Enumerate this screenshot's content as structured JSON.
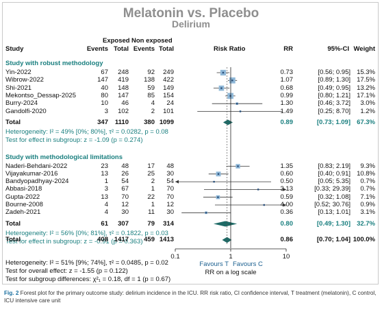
{
  "title": "Melatonin vs. Placebo",
  "subtitle": "Delirium",
  "headers": {
    "exposed": "Exposed",
    "nonexposed": "Non exposed",
    "study": "Study",
    "events1": "Events",
    "total1": "Total",
    "events2": "Events",
    "total2": "Total",
    "rr_header": "Risk Ratio",
    "rr": "RR",
    "ci": "95%-CI",
    "weight": "Weight"
  },
  "chart_data": {
    "type": "forest",
    "x_scale": "log",
    "xlim": [
      0.1,
      10
    ],
    "ticks": [
      "0.1",
      "1",
      "10"
    ],
    "xlabel": "RR on a log scale",
    "favours_left": "Favours T",
    "favours_right": "Favours C",
    "groups": [
      {
        "name": "Study with robust methodology",
        "studies": [
          {
            "study": "Yin-2022",
            "e1": "67",
            "n1": "248",
            "e2": "92",
            "n2": "249",
            "rr": 0.73,
            "lo": 0.56,
            "hi": 0.95,
            "rr_text": "0.73",
            "ci_text": "[0.56; 0.95]",
            "weight": "15.3%"
          },
          {
            "study": "Wibrow-2022",
            "e1": "147",
            "n1": "419",
            "e2": "138",
            "n2": "422",
            "rr": 1.07,
            "lo": 0.89,
            "hi": 1.3,
            "rr_text": "1.07",
            "ci_text": "[0.89; 1.30]",
            "weight": "17.5%"
          },
          {
            "study": "Shi-2021",
            "e1": "40",
            "n1": "148",
            "e2": "59",
            "n2": "149",
            "rr": 0.68,
            "lo": 0.49,
            "hi": 0.95,
            "rr_text": "0.68",
            "ci_text": "[0.49; 0.95]",
            "weight": "13.2%"
          },
          {
            "study": "Mekontso_Dessap-2025",
            "e1": "80",
            "n1": "147",
            "e2": "85",
            "n2": "154",
            "rr": 0.99,
            "lo": 0.8,
            "hi": 1.21,
            "rr_text": "0.99",
            "ci_text": "[0.80; 1.21]",
            "weight": "17.1%"
          },
          {
            "study": "Burry-2024",
            "e1": "10",
            "n1": "46",
            "e2": "4",
            "n2": "24",
            "rr": 1.3,
            "lo": 0.46,
            "hi": 3.72,
            "rr_text": "1.30",
            "ci_text": "[0.46; 3.72]",
            "weight": "3.0%"
          },
          {
            "study": "Gandolfi-2020",
            "e1": "3",
            "n1": "102",
            "e2": "2",
            "n2": "101",
            "rr": 1.49,
            "lo": 0.25,
            "hi": 8.7,
            "rr_text": "1.49",
            "ci_text": "[0.25; 8.70]",
            "weight": "1.2%"
          }
        ],
        "total": {
          "label": "Total",
          "e1": "347",
          "n1": "1110",
          "e2": "380",
          "n2": "1099",
          "rr": 0.89,
          "lo": 0.73,
          "hi": 1.09,
          "rr_text": "0.89",
          "ci_text": "[0.73; 1.09]",
          "weight": "67.3%"
        },
        "heterogeneity": "Heterogeneity: I² = 49% [0%; 80%], τ² = 0.0282, p = 0.08",
        "test": "Test for effect in subgroup: z = -1.09 (p = 0.274)"
      },
      {
        "name": "Study with methodological limitations",
        "studies": [
          {
            "study": "Naderi-Behdani-2022",
            "e1": "23",
            "n1": "48",
            "e2": "17",
            "n2": "48",
            "rr": 1.35,
            "lo": 0.83,
            "hi": 2.19,
            "rr_text": "1.35",
            "ci_text": "[0.83; 2.19]",
            "weight": "9.3%"
          },
          {
            "study": "Vijayakumar-2016",
            "e1": "13",
            "n1": "26",
            "e2": "25",
            "n2": "30",
            "rr": 0.6,
            "lo": 0.4,
            "hi": 0.91,
            "rr_text": "0.60",
            "ci_text": "[0.40; 0.91]",
            "weight": "10.8%"
          },
          {
            "study": "Bandyopadhyay-2024",
            "e1": "1",
            "n1": "54",
            "e2": "2",
            "n2": "54",
            "rr": 0.5,
            "lo": 0.05,
            "hi": 5.35,
            "rr_text": "0.50",
            "ci_text": "[0.05; 5.35]",
            "weight": "0.7%"
          },
          {
            "study": "Abbasi-2018",
            "e1": "3",
            "n1": "67",
            "e2": "1",
            "n2": "70",
            "rr": 3.13,
            "lo": 0.33,
            "hi": 29.39,
            "rr_text": "3.13",
            "ci_text": "[0.33; 29.39]",
            "weight": "0.7%"
          },
          {
            "study": "Gupta-2022",
            "e1": "13",
            "n1": "70",
            "e2": "22",
            "n2": "70",
            "rr": 0.59,
            "lo": 0.32,
            "hi": 1.08,
            "rr_text": "0.59",
            "ci_text": "[0.32; 1.08]",
            "weight": "7.1%"
          },
          {
            "study": "Bourne-2008",
            "e1": "4",
            "n1": "12",
            "e2": "1",
            "n2": "12",
            "rr": 4.0,
            "lo": 0.52,
            "hi": 30.76,
            "rr_text": "4.00",
            "ci_text": "[0.52; 30.76]",
            "weight": "0.9%"
          },
          {
            "study": "Zadeh-2021",
            "e1": "4",
            "n1": "30",
            "e2": "11",
            "n2": "30",
            "rr": 0.36,
            "lo": 0.13,
            "hi": 1.01,
            "rr_text": "0.36",
            "ci_text": "[0.13; 1.01]",
            "weight": "3.1%"
          }
        ],
        "total": {
          "label": "Total",
          "e1": "61",
          "n1": "307",
          "e2": "79",
          "n2": "314",
          "rr": 0.8,
          "lo": 0.49,
          "hi": 1.3,
          "rr_text": "0.80",
          "ci_text": "[0.49; 1.30]",
          "weight": "32.7%"
        },
        "heterogeneity": "Heterogeneity: I² = 56% [0%; 81%], τ² = 0.1822, p = 0.03",
        "test": "Test for effect in subgroup: z = -0.91 (p = 0.363)"
      }
    ],
    "overall": {
      "label": "Total",
      "e1": "408",
      "n1": "1417",
      "e2": "459",
      "n2": "1413",
      "rr": 0.86,
      "lo": 0.7,
      "hi": 1.04,
      "rr_text": "0.86",
      "ci_text": "[0.70; 1.04]",
      "weight": "100.0%"
    },
    "footer": [
      "Heterogeneity: I² = 51% [9%; 74%], τ² = 0.0485, p = 0.02",
      "Test for overall effect: z = -1.55 (p = 0.122)",
      "Test for subgroup differences: χ²₁ = 0.18, df = 1 (p = 0.67)"
    ]
  },
  "caption": {
    "label": "Fig. 2",
    "text": "Forest plot for the primary outcome study: delirium incidence in the ICU. RR risk ratio, CI confidence interval, T treatment (melatonin), C control, ICU intensive care unit"
  },
  "colors": {
    "square": "#8fb8d8",
    "diamond": "#1e6a66",
    "group_title": "#1a7f7f"
  }
}
